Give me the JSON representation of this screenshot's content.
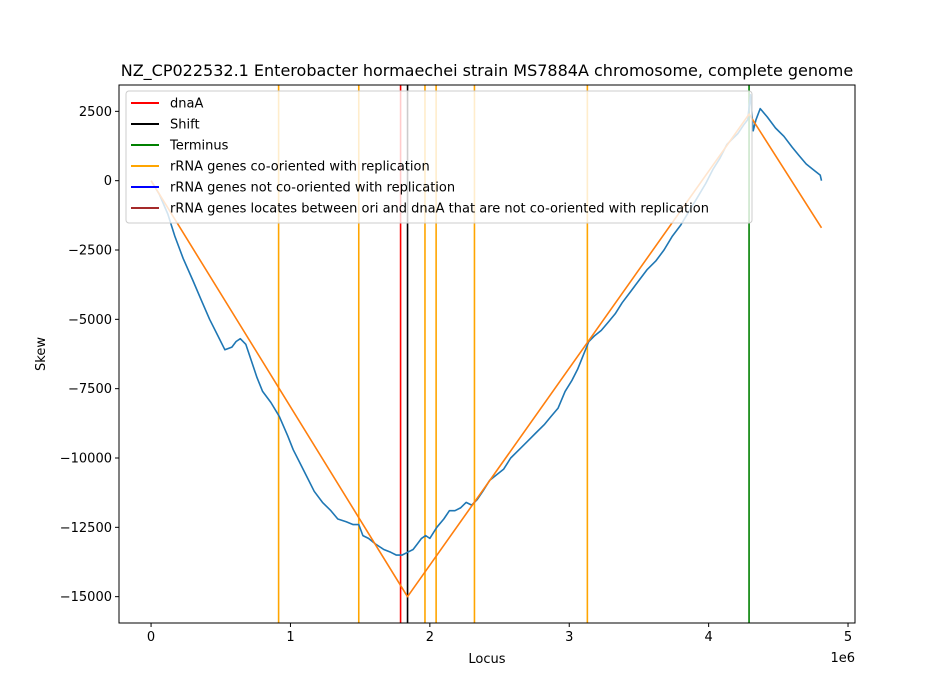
{
  "chart_data": {
    "type": "line",
    "title": "NZ_CP022532.1 Enterobacter hormaechei strain MS7884A chromosome, complete genome",
    "xlabel": "Locus",
    "ylabel": "Skew",
    "x_offset_label": "1e6",
    "xlim": [
      -230000,
      5050000
    ],
    "ylim": [
      -15950,
      3450
    ],
    "x_ticks": [
      {
        "value": 0,
        "label": "0"
      },
      {
        "value": 1000000,
        "label": "1"
      },
      {
        "value": 2000000,
        "label": "2"
      },
      {
        "value": 3000000,
        "label": "3"
      },
      {
        "value": 4000000,
        "label": "4"
      },
      {
        "value": 5000000,
        "label": "5"
      }
    ],
    "y_ticks": [
      {
        "value": 2500,
        "label": "2500"
      },
      {
        "value": 0,
        "label": "0"
      },
      {
        "value": -2500,
        "label": "−2500"
      },
      {
        "value": -5000,
        "label": "−5000"
      },
      {
        "value": -7500,
        "label": "−7500"
      },
      {
        "value": -10000,
        "label": "−10000"
      },
      {
        "value": -12500,
        "label": "−12500"
      },
      {
        "value": -15000,
        "label": "−15000"
      }
    ],
    "legend_position": "top-left",
    "legend": [
      {
        "label": "dnaA",
        "color": "#ff0000"
      },
      {
        "label": "Shift",
        "color": "#000000"
      },
      {
        "label": "Terminus",
        "color": "#008000"
      },
      {
        "label": "rRNA genes co-oriented with replication",
        "color": "#ffa500"
      },
      {
        "label": "rRNA genes not co-oriented with replication",
        "color": "#0000ff"
      },
      {
        "label": "rRNA genes locates between ori and dnaA that are not co-oriented with replication",
        "color": "#a52a2a"
      }
    ],
    "vlines": [
      {
        "kind": "rRNA co-oriented",
        "x": 915000,
        "color": "#ffa500"
      },
      {
        "kind": "rRNA co-oriented",
        "x": 1490000,
        "color": "#ffa500"
      },
      {
        "kind": "rRNA co-oriented",
        "x": 1965000,
        "color": "#ffa500"
      },
      {
        "kind": "rRNA co-oriented",
        "x": 2045000,
        "color": "#ffa500"
      },
      {
        "kind": "rRNA co-oriented",
        "x": 2320000,
        "color": "#ffa500"
      },
      {
        "kind": "rRNA co-oriented",
        "x": 3130000,
        "color": "#ffa500"
      },
      {
        "kind": "dnaA",
        "x": 1790000,
        "color": "#ff0000"
      },
      {
        "kind": "Shift",
        "x": 1840000,
        "color": "#000000"
      },
      {
        "kind": "Terminus",
        "x": 4290000,
        "color": "#008000"
      }
    ],
    "series": [
      {
        "role": "cumulative skew",
        "color": "#1f77b4",
        "x": [
          0,
          60000,
          120000,
          170000,
          230000,
          300000,
          360000,
          420000,
          480000,
          530000,
          580000,
          610000,
          640000,
          680000,
          720000,
          760000,
          800000,
          860000,
          920000,
          980000,
          1020000,
          1070000,
          1120000,
          1170000,
          1230000,
          1290000,
          1340000,
          1400000,
          1450000,
          1490000,
          1520000,
          1560000,
          1610000,
          1670000,
          1720000,
          1760000,
          1800000,
          1840000,
          1880000,
          1910000,
          1940000,
          1970000,
          2000000,
          2050000,
          2100000,
          2140000,
          2180000,
          2220000,
          2260000,
          2300000,
          2340000,
          2380000,
          2430000,
          2480000,
          2530000,
          2580000,
          2640000,
          2700000,
          2760000,
          2820000,
          2870000,
          2920000,
          2970000,
          3020000,
          3060000,
          3100000,
          3140000,
          3180000,
          3230000,
          3280000,
          3330000,
          3380000,
          3440000,
          3500000,
          3560000,
          3620000,
          3680000,
          3740000,
          3800000,
          3860000,
          3920000,
          3980000,
          4030000,
          4080000,
          4130000,
          4170000,
          4210000,
          4250000,
          4280000,
          4300000,
          4320000,
          4340000,
          4370000,
          4420000,
          4480000,
          4540000,
          4600000,
          4650000,
          4700000,
          4750000,
          4800000,
          4810000
        ],
        "y": [
          0,
          -500,
          -1200,
          -2000,
          -2800,
          -3600,
          -4300,
          -5000,
          -5600,
          -6100,
          -6000,
          -5800,
          -5700,
          -5900,
          -6500,
          -7100,
          -7600,
          -8000,
          -8500,
          -9200,
          -9700,
          -10200,
          -10700,
          -11200,
          -11600,
          -11900,
          -12200,
          -12300,
          -12400,
          -12400,
          -12800,
          -12900,
          -13100,
          -13300,
          -13400,
          -13500,
          -13500,
          -13400,
          -13300,
          -13100,
          -12900,
          -12800,
          -12900,
          -12500,
          -12200,
          -11900,
          -11900,
          -11800,
          -11600,
          -11700,
          -11500,
          -11200,
          -10800,
          -10600,
          -10400,
          -10000,
          -9700,
          -9400,
          -9100,
          -8800,
          -8500,
          -8200,
          -7600,
          -7200,
          -6800,
          -6300,
          -5800,
          -5600,
          -5400,
          -5100,
          -4800,
          -4400,
          -4000,
          -3600,
          -3200,
          -2900,
          -2500,
          -2000,
          -1600,
          -1100,
          -600,
          -100,
          400,
          800,
          1300,
          1500,
          1700,
          2000,
          2200,
          3100,
          1800,
          2200,
          2600,
          2300,
          1900,
          1600,
          1200,
          900,
          600,
          400,
          200,
          0
        ]
      },
      {
        "role": "fitted skew",
        "color": "#ff7f0e",
        "x": [
          0,
          1840000,
          4290000,
          4810000
        ],
        "y": [
          0,
          -15000,
          2400,
          -1700
        ]
      }
    ]
  }
}
